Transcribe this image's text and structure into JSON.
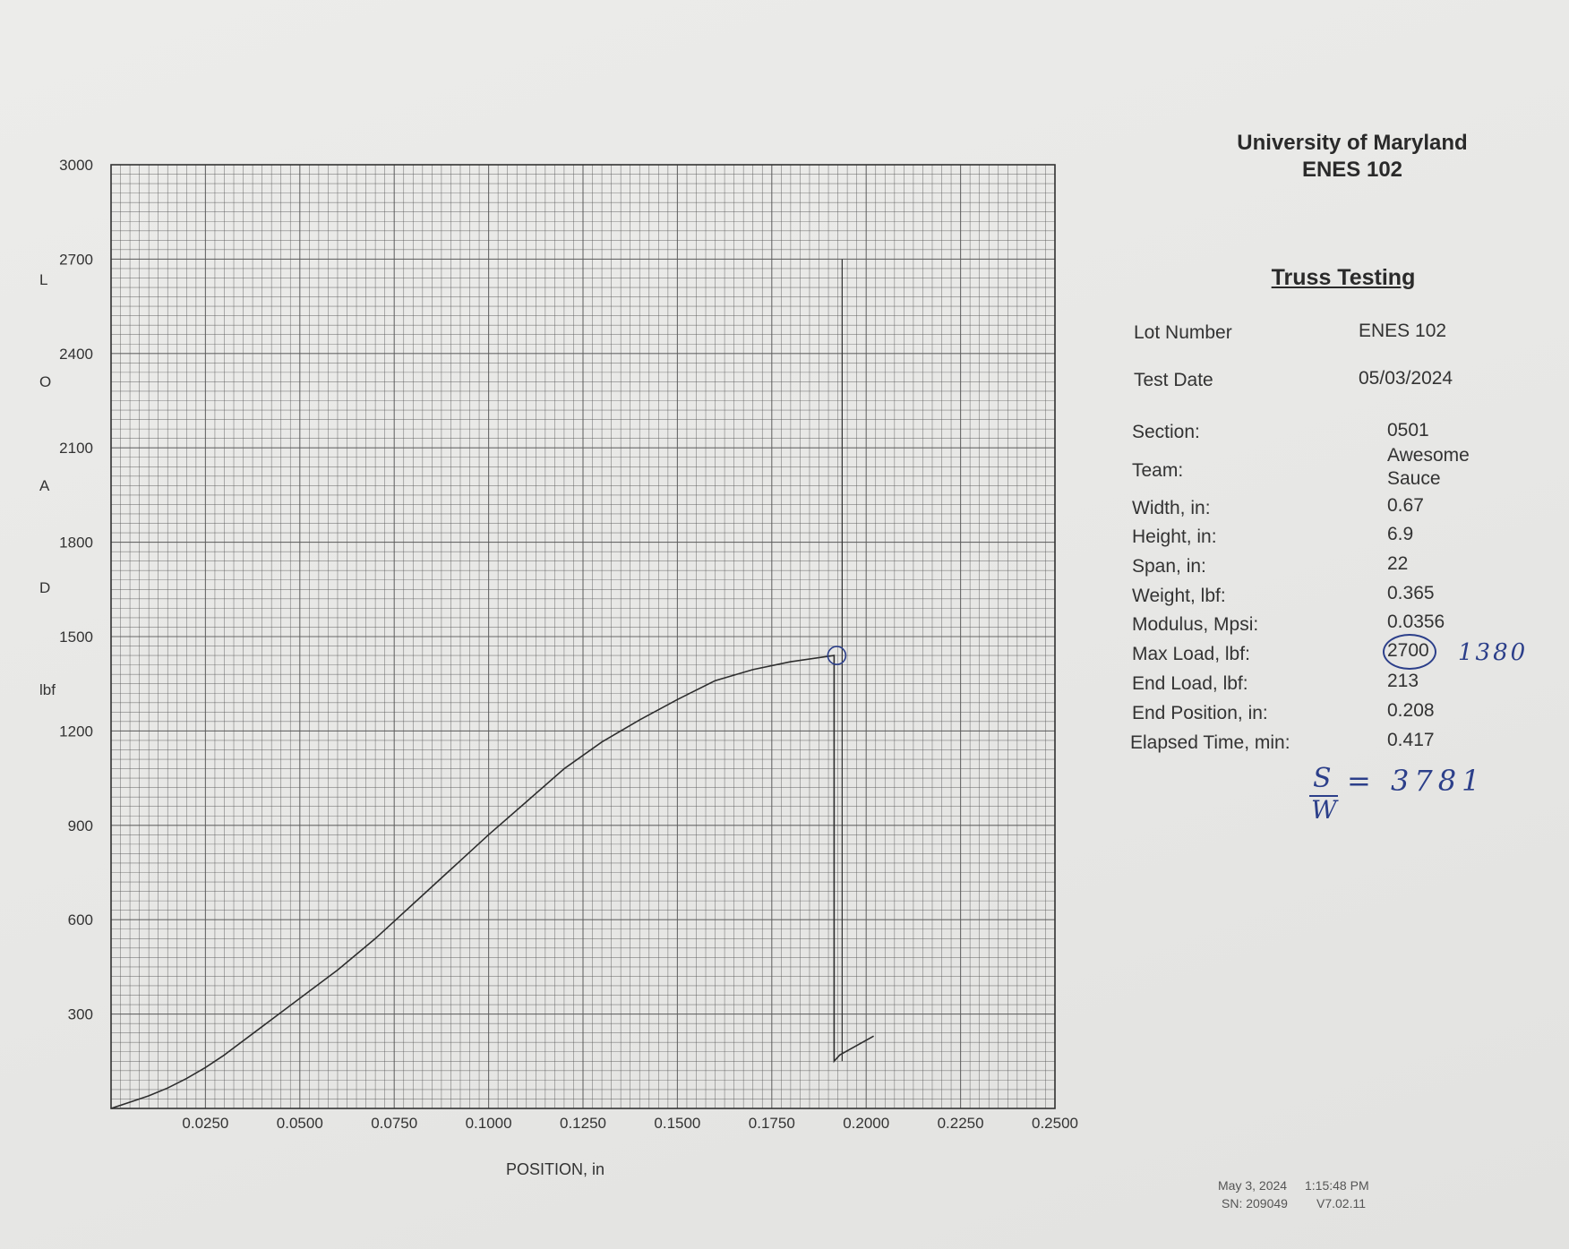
{
  "colors": {
    "grid": "#5a5a5a",
    "curve": "#2e2e2e",
    "ink": "#2c3f8a",
    "paper": "#e9e9e7"
  },
  "chart_data": {
    "type": "line",
    "xlabel": "POSITION, in",
    "ylabel_letters": [
      "L",
      "O",
      "A",
      "D",
      "lbf"
    ],
    "xlim": [
      0,
      0.25
    ],
    "ylim": [
      0,
      3000
    ],
    "x_ticks": [
      "0.0250",
      "0.0500",
      "0.0750",
      "0.1000",
      "0.1250",
      "0.1500",
      "0.1750",
      "0.2000",
      "0.2250",
      "0.2500"
    ],
    "y_ticks": [
      "3000",
      "2700",
      "2400",
      "2100",
      "1800",
      "1500",
      "1200",
      "900",
      "600",
      "300"
    ],
    "grid": true,
    "series": [
      {
        "x": [
          0.0,
          0.005,
          0.01,
          0.015,
          0.02,
          0.025,
          0.03,
          0.04,
          0.05,
          0.06,
          0.07,
          0.08,
          0.09,
          0.1,
          0.11,
          0.12,
          0.13,
          0.14,
          0.15,
          0.16,
          0.17,
          0.18,
          0.1915,
          0.1915,
          0.193,
          0.202
        ],
        "y": [
          0,
          20,
          40,
          65,
          95,
          130,
          170,
          260,
          350,
          440,
          540,
          650,
          760,
          870,
          975,
          1080,
          1165,
          1235,
          1300,
          1360,
          1395,
          1420,
          1440,
          150,
          170,
          230
        ]
      }
    ],
    "annotations": [
      {
        "type": "vertical-line",
        "x": 0.1915,
        "y_range": [
          150,
          2700
        ]
      },
      {
        "type": "circle",
        "x": 0.1915,
        "y": 1440
      }
    ]
  },
  "header": {
    "university": "University of Maryland",
    "course": "ENES 102",
    "title": "Truss Testing"
  },
  "fields": {
    "lot_number": {
      "label": "Lot Number",
      "value": "ENES 102"
    },
    "test_date": {
      "label": "Test Date",
      "value": "05/03/2024"
    },
    "section": {
      "label": "Section:",
      "value": "0501"
    },
    "team": {
      "label": "Team:",
      "value_line1": "Awesome",
      "value_line2": "Sauce"
    },
    "width": {
      "label": "Width, in:",
      "value": "0.67"
    },
    "height": {
      "label": "Height, in:",
      "value": "6.9"
    },
    "span": {
      "label": "Span, in:",
      "value": "22"
    },
    "weight": {
      "label": "Weight, lbf:",
      "value": "0.365"
    },
    "modulus": {
      "label": "Modulus, Mpsi:",
      "value": "0.0356"
    },
    "max_load": {
      "label": "Max Load, lbf:",
      "value": "2700"
    },
    "end_load": {
      "label": "End Load, lbf:",
      "value": "213"
    },
    "end_position": {
      "label": "End Position, in:",
      "value": "0.208"
    },
    "elapsed_time": {
      "label": "Elapsed Time, min:",
      "value": "0.417"
    }
  },
  "handwritten": {
    "max_load_correction": "1380",
    "ratio_numerator": "S",
    "ratio_denominator": "W",
    "ratio_value": "= 3781"
  },
  "footer": {
    "line1_date": "May 3, 2024",
    "line1_time": "1:15:48 PM",
    "line2_sn": "SN: 209049",
    "line2_version": "V7.02.11"
  }
}
